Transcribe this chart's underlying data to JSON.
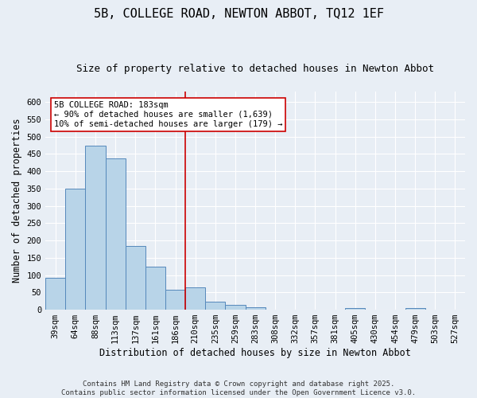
{
  "title": "5B, COLLEGE ROAD, NEWTON ABBOT, TQ12 1EF",
  "subtitle": "Size of property relative to detached houses in Newton Abbot",
  "xlabel": "Distribution of detached houses by size in Newton Abbot",
  "ylabel": "Number of detached properties",
  "categories": [
    "39sqm",
    "64sqm",
    "88sqm",
    "113sqm",
    "137sqm",
    "161sqm",
    "186sqm",
    "210sqm",
    "235sqm",
    "259sqm",
    "283sqm",
    "308sqm",
    "332sqm",
    "357sqm",
    "381sqm",
    "405sqm",
    "430sqm",
    "454sqm",
    "479sqm",
    "503sqm",
    "527sqm"
  ],
  "values": [
    93,
    350,
    473,
    438,
    183,
    125,
    57,
    65,
    23,
    13,
    7,
    0,
    0,
    0,
    0,
    5,
    0,
    0,
    4,
    0,
    0
  ],
  "bar_color": "#b8d4e8",
  "bar_edge_color": "#5588bb",
  "vline_x": 6.5,
  "vline_color": "#cc0000",
  "annotation_text": "5B COLLEGE ROAD: 183sqm\n← 90% of detached houses are smaller (1,639)\n10% of semi-detached houses are larger (179) →",
  "annotation_box_color": "#ffffff",
  "annotation_box_edge_color": "#cc0000",
  "ylim": [
    0,
    630
  ],
  "yticks": [
    0,
    50,
    100,
    150,
    200,
    250,
    300,
    350,
    400,
    450,
    500,
    550,
    600
  ],
  "background_color": "#e8eef5",
  "grid_color": "#ffffff",
  "footer": "Contains HM Land Registry data © Crown copyright and database right 2025.\nContains public sector information licensed under the Open Government Licence v3.0.",
  "title_fontsize": 11,
  "subtitle_fontsize": 9,
  "label_fontsize": 8.5,
  "tick_fontsize": 7.5,
  "footer_fontsize": 6.5
}
